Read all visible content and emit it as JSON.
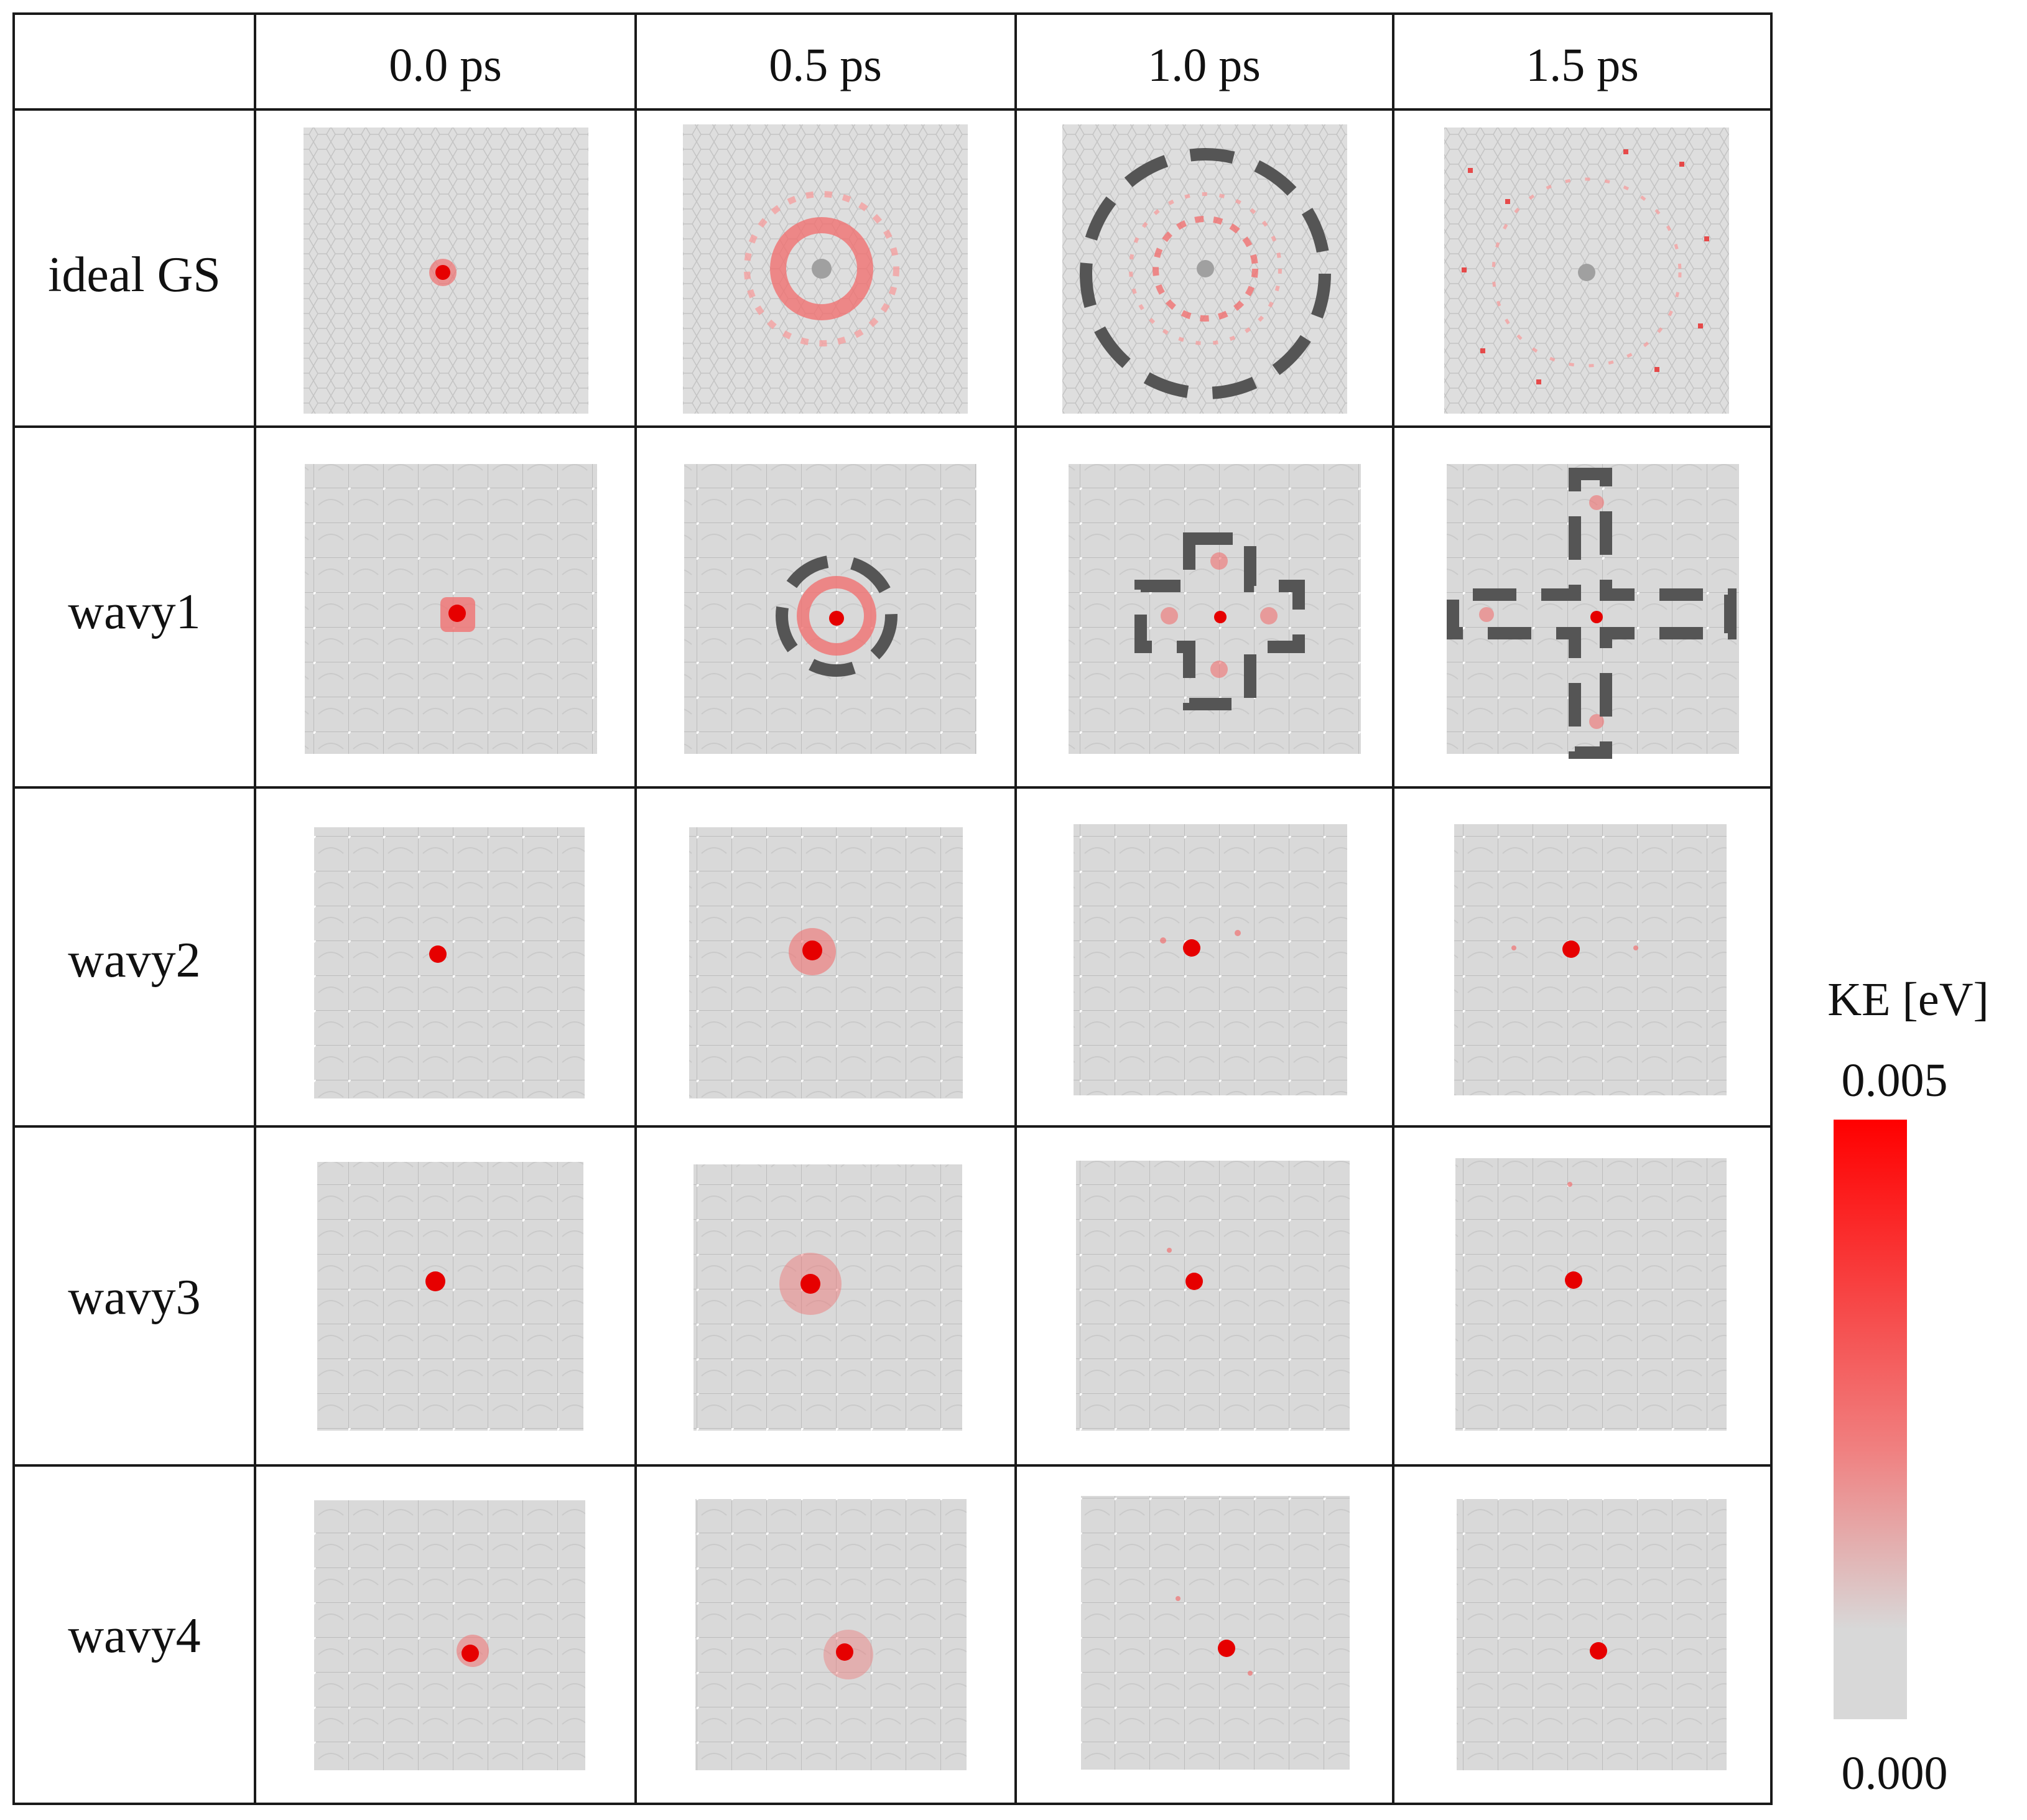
{
  "column_headers": [
    "0.0 ps",
    "0.5 ps",
    "1.0 ps",
    "1.5 ps"
  ],
  "row_labels": [
    "ideal GS",
    "wavy1",
    "wavy2",
    "wavy3",
    "wavy4"
  ],
  "colorbar": {
    "title": "KE [eV]",
    "max_label": "0.005",
    "min_label": "0.000",
    "high_color": "#ff0000",
    "low_color": "#d8d8d8"
  }
}
